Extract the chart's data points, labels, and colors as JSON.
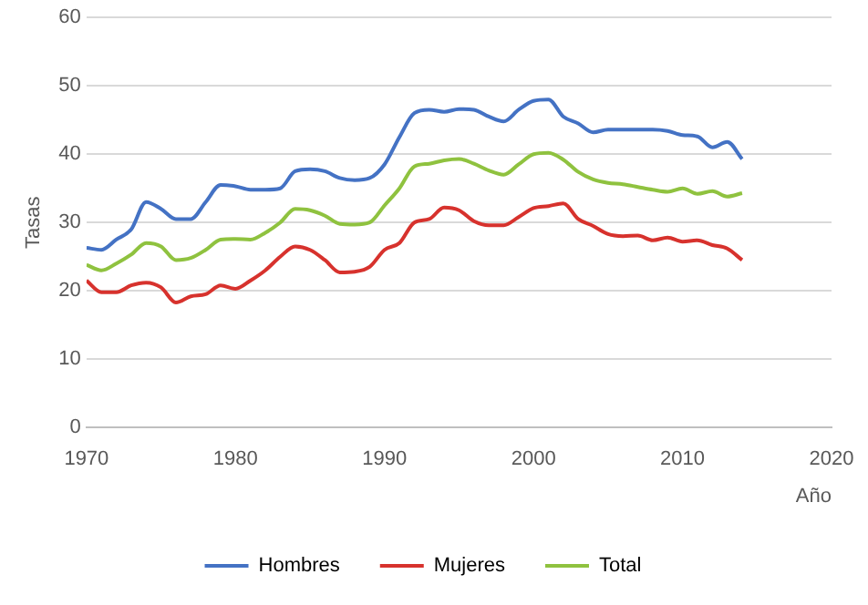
{
  "chart_data": {
    "type": "line",
    "xlabel": "Año",
    "ylabel": "Tasas",
    "x": [
      1970,
      1971,
      1972,
      1973,
      1974,
      1975,
      1976,
      1977,
      1978,
      1979,
      1980,
      1981,
      1982,
      1983,
      1984,
      1985,
      1986,
      1987,
      1988,
      1989,
      1990,
      1991,
      1992,
      1993,
      1994,
      1995,
      1996,
      1997,
      1998,
      1999,
      2000,
      2001,
      2002,
      2003,
      2004,
      2005,
      2006,
      2007,
      2008,
      2009,
      2010,
      2011,
      2012,
      2013,
      2014
    ],
    "series": [
      {
        "name": "Hombres",
        "color": "#4472c4",
        "values": [
          26.3,
          26,
          27.5,
          29,
          33,
          32,
          30.5,
          30.5,
          33,
          35.5,
          35.3,
          34.8,
          34.8,
          35,
          37.5,
          37.8,
          37.5,
          36.5,
          36.2,
          36.5,
          38.5,
          42.5,
          46,
          46.5,
          46.2,
          46.6,
          46.5,
          45.5,
          44.8,
          46.5,
          47.8,
          48,
          45.5,
          44.5,
          43.2,
          43.6,
          43.6,
          43.6,
          43.6,
          43.4,
          42.8,
          42.6,
          41,
          41.8,
          39.3
        ]
      },
      {
        "name": "Mujeres",
        "color": "#d7322d",
        "values": [
          21.5,
          19.8,
          19.8,
          20.8,
          21.2,
          20.5,
          18.3,
          19.2,
          19.5,
          20.8,
          20.3,
          21.5,
          23,
          25,
          26.5,
          26,
          24.5,
          22.7,
          22.8,
          23.5,
          26,
          27,
          30,
          30.5,
          32.2,
          31.8,
          30.2,
          29.6,
          29.6,
          30.8,
          32.1,
          32.4,
          32.8,
          30.5,
          29.5,
          28.3,
          28,
          28.1,
          27.4,
          27.8,
          27.2,
          27.4,
          26.7,
          26.2,
          24.5
        ]
      },
      {
        "name": "Total",
        "color": "#8fc23f",
        "values": [
          23.8,
          23,
          24,
          25.3,
          27,
          26.5,
          24.5,
          24.8,
          26,
          27.5,
          27.6,
          27.5,
          28.5,
          30,
          32,
          31.8,
          31,
          29.8,
          29.7,
          30,
          32.5,
          35,
          38.2,
          38.6,
          39.1,
          39.3,
          38.6,
          37.6,
          37,
          38.5,
          40,
          40.2,
          39.2,
          37.4,
          36.3,
          35.8,
          35.6,
          35.2,
          34.8,
          34.5,
          35,
          34.2,
          34.6,
          33.8,
          34.3
        ]
      }
    ],
    "xlim": [
      1970,
      2020
    ],
    "xticks": [
      1970,
      1980,
      1990,
      2000,
      2010,
      2020
    ],
    "ylim": [
      0,
      60
    ],
    "yticks": [
      0,
      10,
      20,
      30,
      40,
      50,
      60
    ],
    "grid": "y",
    "legend": "bottom",
    "marker": "none",
    "line_style": "solid"
  }
}
